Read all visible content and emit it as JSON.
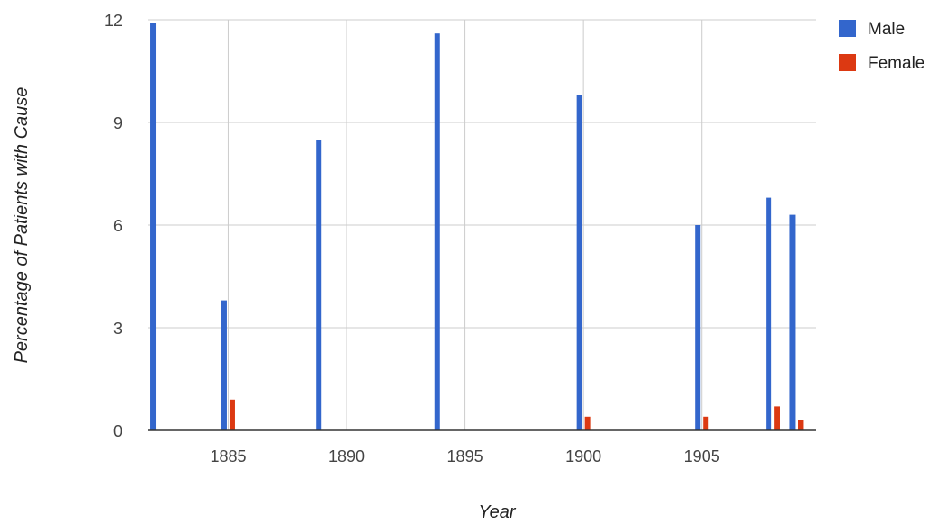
{
  "chart_data": {
    "type": "bar",
    "title": "",
    "xlabel": "Year",
    "ylabel": "Percentage of Patients with Cause",
    "xlim": [
      1881.6,
      1909.8
    ],
    "ylim": [
      0,
      12
    ],
    "xticks": [
      1885,
      1890,
      1895,
      1900,
      1905
    ],
    "yticks": [
      0,
      3,
      6,
      9,
      12
    ],
    "grid": true,
    "legend_position": "top-right",
    "series": [
      {
        "name": "Male",
        "color": "#3366cc",
        "points": [
          {
            "x": 1882,
            "y": 11.9
          },
          {
            "x": 1885,
            "y": 3.8
          },
          {
            "x": 1889,
            "y": 8.5
          },
          {
            "x": 1894,
            "y": 11.6
          },
          {
            "x": 1900,
            "y": 9.8
          },
          {
            "x": 1905,
            "y": 6.0
          },
          {
            "x": 1908,
            "y": 6.8
          },
          {
            "x": 1909,
            "y": 6.3
          }
        ]
      },
      {
        "name": "Female",
        "color": "#dc3912",
        "points": [
          {
            "x": 1882,
            "y": 0
          },
          {
            "x": 1885,
            "y": 0.9
          },
          {
            "x": 1889,
            "y": 0
          },
          {
            "x": 1894,
            "y": 0
          },
          {
            "x": 1900,
            "y": 0.4
          },
          {
            "x": 1905,
            "y": 0.4
          },
          {
            "x": 1908,
            "y": 0.7
          },
          {
            "x": 1909,
            "y": 0.3
          }
        ]
      }
    ]
  }
}
